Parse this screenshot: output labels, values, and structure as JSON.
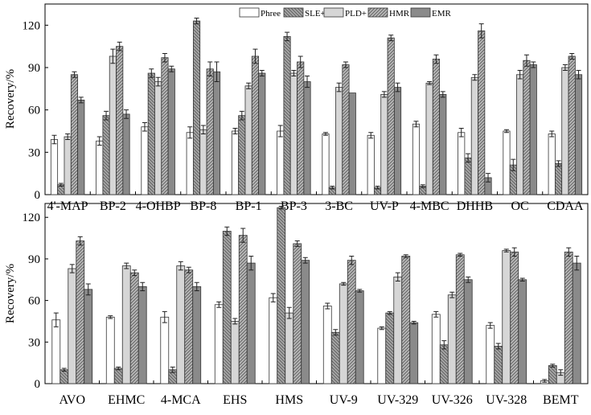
{
  "chart_data": [
    {
      "type": "bar",
      "panel": "top",
      "ylabel": "Recovery/%",
      "ylim": [
        0,
        135
      ],
      "yticks": [
        0,
        30,
        60,
        90,
        120
      ],
      "legend_placement": "top-center",
      "categories": [
        "4'-MAP",
        "BP-2",
        "4-OHBP",
        "BP-8",
        "BP-1",
        "BP-3",
        "3-BC",
        "UV-P",
        "4-MBC",
        "DHHB",
        "OC",
        "CDAA"
      ],
      "series": [
        {
          "name": "Phree",
          "values": [
            39,
            38,
            48,
            44,
            45,
            45,
            43,
            42,
            50,
            44,
            45,
            43
          ],
          "errors": [
            3,
            3,
            3,
            4,
            2,
            4,
            1,
            2,
            2,
            3,
            1,
            2
          ]
        },
        {
          "name": "SLE+",
          "values": [
            7,
            56,
            86,
            123,
            56,
            112,
            5,
            5,
            6,
            26,
            21,
            22
          ],
          "errors": [
            1,
            3,
            3,
            2,
            3,
            3,
            1,
            1,
            1,
            3,
            4,
            2
          ]
        },
        {
          "name": "PLD+",
          "values": [
            41,
            98,
            80,
            46,
            77,
            86,
            76,
            71,
            79,
            83,
            85,
            90
          ],
          "errors": [
            2,
            5,
            3,
            3,
            2,
            2,
            3,
            2,
            1,
            2,
            3,
            2
          ]
        },
        {
          "name": "HMR",
          "values": [
            85,
            105,
            97,
            89,
            98,
            94,
            92,
            111,
            96,
            116,
            95,
            98
          ],
          "errors": [
            2,
            3,
            3,
            5,
            5,
            4,
            2,
            2,
            3,
            5,
            4,
            2
          ]
        },
        {
          "name": "EMR",
          "values": [
            67,
            57,
            89,
            87,
            86,
            80,
            72,
            76,
            71,
            12,
            92,
            85
          ],
          "errors": [
            2,
            3,
            2,
            7,
            2,
            4,
            0,
            3,
            2,
            3,
            2,
            3
          ]
        }
      ]
    },
    {
      "type": "bar",
      "panel": "bottom",
      "ylabel": "Recovery/%",
      "ylim": [
        0,
        130
      ],
      "yticks": [
        0,
        30,
        60,
        90,
        120
      ],
      "categories": [
        "AVO",
        "EHMC",
        "4-MCA",
        "EHS",
        "HMS",
        "UV-9",
        "UV-329",
        "UV-326",
        "UV-328",
        "BEMT"
      ],
      "series": [
        {
          "name": "Phree",
          "values": [
            46,
            48,
            48,
            57,
            62,
            56,
            40,
            50,
            42,
            2
          ],
          "errors": [
            5,
            1,
            4,
            2,
            3,
            2,
            1,
            2,
            2,
            1
          ]
        },
        {
          "name": "SLE+",
          "values": [
            10,
            11,
            10,
            110,
            127,
            37,
            51,
            28,
            27,
            13
          ],
          "errors": [
            1,
            1,
            2,
            3,
            1,
            2,
            1,
            3,
            2,
            1
          ]
        },
        {
          "name": "PLD+",
          "values": [
            83,
            85,
            85,
            45,
            51,
            72,
            77,
            64,
            96,
            8
          ],
          "errors": [
            3,
            2,
            3,
            2,
            4,
            1,
            3,
            2,
            1,
            2
          ]
        },
        {
          "name": "HMR",
          "values": [
            103,
            80,
            82,
            107,
            101,
            89,
            92,
            93,
            95,
            95
          ],
          "errors": [
            3,
            2,
            2,
            5,
            2,
            3,
            1,
            1,
            3,
            3
          ]
        },
        {
          "name": "EMR",
          "values": [
            68,
            70,
            70,
            87,
            89,
            67,
            44,
            75,
            75,
            87
          ],
          "errors": [
            4,
            3,
            3,
            5,
            2,
            1,
            1,
            2,
            1,
            5
          ]
        }
      ]
    }
  ],
  "series_colors": {
    "Phree": "#ffffff",
    "SLE+": "#a6a6a6",
    "PLD+": "#d6d6d6",
    "HMR": "#b8b8b8",
    "EMR": "#8a8a8a"
  },
  "series_hatch": {
    "Phree": "none",
    "SLE+": "backslash",
    "PLD+": "none",
    "HMR": "slash",
    "EMR": "none"
  }
}
